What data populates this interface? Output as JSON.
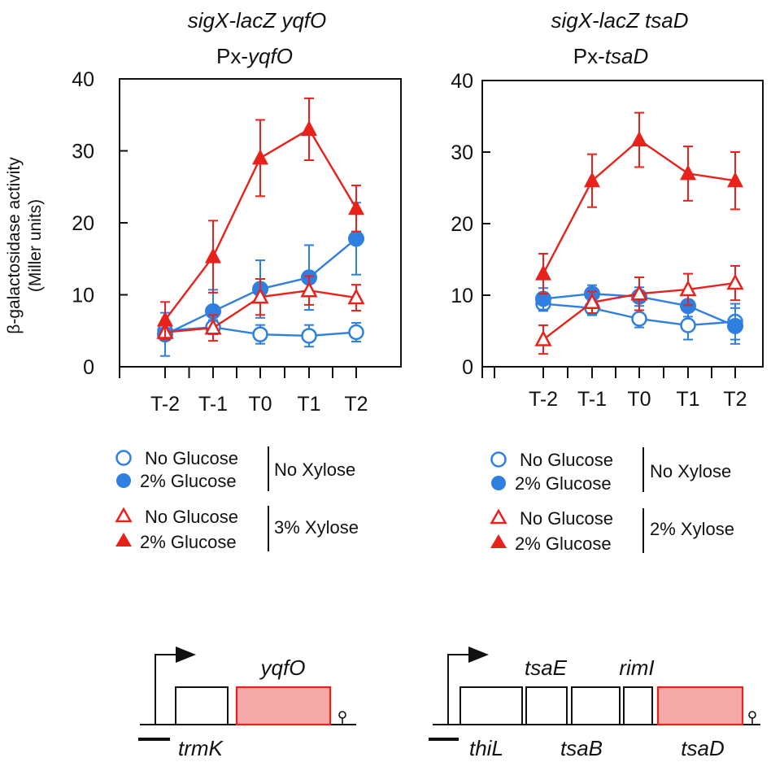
{
  "colors": {
    "blue": "#2f7fe0",
    "red": "#e8221b",
    "axis": "#111111",
    "gene_fill": "#f6a9a9",
    "gene_stroke": "#e8221b"
  },
  "y_label_line1": "β-galactosidase activity",
  "y_label_line2": "(Miller units)",
  "chart_data": [
    {
      "type": "line",
      "title_prefix": "sigX-lacZ ",
      "title_gene": "yqfO",
      "subtitle_prefix": "Px-",
      "subtitle_gene": "yqfO",
      "categories": [
        "T-2",
        "T-1",
        "T0",
        "T1",
        "T2"
      ],
      "ylim": [
        0,
        40
      ],
      "yticks": [
        0,
        10,
        20,
        30,
        40
      ],
      "series": [
        {
          "name": "No Glucose / No Xylose",
          "color": "blue",
          "marker": "circle-open",
          "values": [
            5.0,
            5.5,
            4.5,
            4.3,
            4.8
          ],
          "errors": [
            1.2,
            1.0,
            1.3,
            1.5,
            1.3
          ]
        },
        {
          "name": "2% Glucose / No Xylose",
          "color": "blue",
          "marker": "circle-filled",
          "values": [
            4.5,
            7.7,
            10.8,
            12.4,
            17.8
          ],
          "errors": [
            3.0,
            3.0,
            4.0,
            4.5,
            5.0
          ]
        },
        {
          "name": "No Glucose / 3% Xylose",
          "color": "red",
          "marker": "triangle-open",
          "values": [
            4.8,
            5.4,
            9.7,
            10.6,
            9.6
          ],
          "errors": [
            1.0,
            1.8,
            2.5,
            2.0,
            1.8
          ]
        },
        {
          "name": "2% Glucose / 3% Xylose",
          "color": "red",
          "marker": "triangle-filled",
          "values": [
            6.5,
            15.3,
            29.0,
            33.0,
            22.0
          ],
          "errors": [
            2.5,
            5.0,
            5.3,
            4.3,
            3.2
          ]
        }
      ],
      "legend": {
        "no_xylose": "No Xylose",
        "xylose": "3% Xylose",
        "items": [
          "No Glucose",
          "2% Glucose",
          "No Glucose",
          "2% Glucose"
        ]
      }
    },
    {
      "type": "line",
      "title_prefix": "sigX-lacZ ",
      "title_gene": "tsaD",
      "subtitle_prefix": "Px-",
      "subtitle_gene": "tsaD",
      "categories": [
        "T-2",
        "T-1",
        "T0",
        "T1",
        "T2"
      ],
      "ylim": [
        0,
        40
      ],
      "yticks": [
        0,
        10,
        20,
        30,
        40
      ],
      "series": [
        {
          "name": "No Glucose / No Xylose",
          "color": "blue",
          "marker": "circle-open",
          "values": [
            8.8,
            8.2,
            6.7,
            5.8,
            6.3
          ],
          "errors": [
            1.0,
            1.0,
            1.2,
            2.0,
            2.5
          ]
        },
        {
          "name": "2% Glucose / No Xylose",
          "color": "blue",
          "marker": "circle-filled",
          "values": [
            9.5,
            10.2,
            9.8,
            8.5,
            5.7
          ],
          "errors": [
            1.5,
            1.2,
            1.3,
            1.5,
            2.5
          ]
        },
        {
          "name": "No Glucose / 2% Xylose",
          "color": "red",
          "marker": "triangle-open",
          "values": [
            3.8,
            9.0,
            10.2,
            10.8,
            11.7
          ],
          "errors": [
            2.0,
            1.5,
            2.3,
            2.2,
            2.4
          ]
        },
        {
          "name": "2% Glucose / 2% Xylose",
          "color": "red",
          "marker": "triangle-filled",
          "values": [
            13.0,
            26.0,
            31.7,
            27.0,
            26.0
          ],
          "errors": [
            2.8,
            3.7,
            3.8,
            3.8,
            4.0
          ]
        }
      ],
      "legend": {
        "no_xylose": "No Xylose",
        "xylose": "2% Xylose",
        "items": [
          "No Glucose",
          "2% Glucose",
          "No Glucose",
          "2% Glucose"
        ]
      }
    }
  ],
  "operon_left": {
    "above": [
      "yqfO"
    ],
    "below": [
      "trmK"
    ]
  },
  "operon_right": {
    "above": [
      "tsaE",
      "rimI"
    ],
    "below": [
      "thiL",
      "tsaB",
      "tsaD"
    ]
  }
}
